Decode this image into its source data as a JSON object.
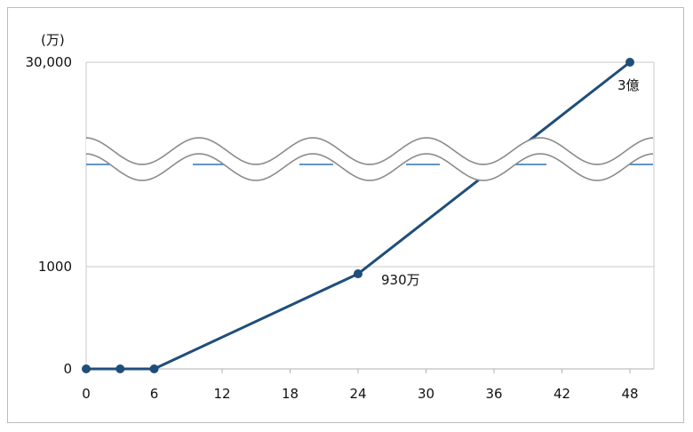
{
  "chart_data": {
    "type": "line",
    "unit_label": "(万)",
    "x_ticks": [
      0,
      6,
      12,
      18,
      24,
      30,
      36,
      42,
      48
    ],
    "y_ticks": [
      {
        "value": 0,
        "label": "0"
      },
      {
        "value": 1000,
        "label": "1000"
      },
      {
        "value": 30000,
        "label": "30,000"
      }
    ],
    "xlim": [
      0,
      50
    ],
    "y_axis_break": true,
    "grid": true,
    "series": [
      {
        "color": "#1f4e79",
        "points": [
          {
            "x": 0,
            "y": 0
          },
          {
            "x": 3,
            "y": 0
          },
          {
            "x": 6,
            "y": 0
          },
          {
            "x": 24,
            "y": 930
          },
          {
            "x": 48,
            "y": 30000
          }
        ]
      }
    ],
    "annotations": [
      {
        "x": 24,
        "y": 930,
        "text": "930万"
      },
      {
        "x": 48,
        "y": 30000,
        "text": "3億"
      }
    ],
    "colors": {
      "line": "#1f4e79",
      "grid": "#c8c8c8",
      "break_wave": "#8c8c8c",
      "dashed_ref": "#2e74b5"
    }
  }
}
